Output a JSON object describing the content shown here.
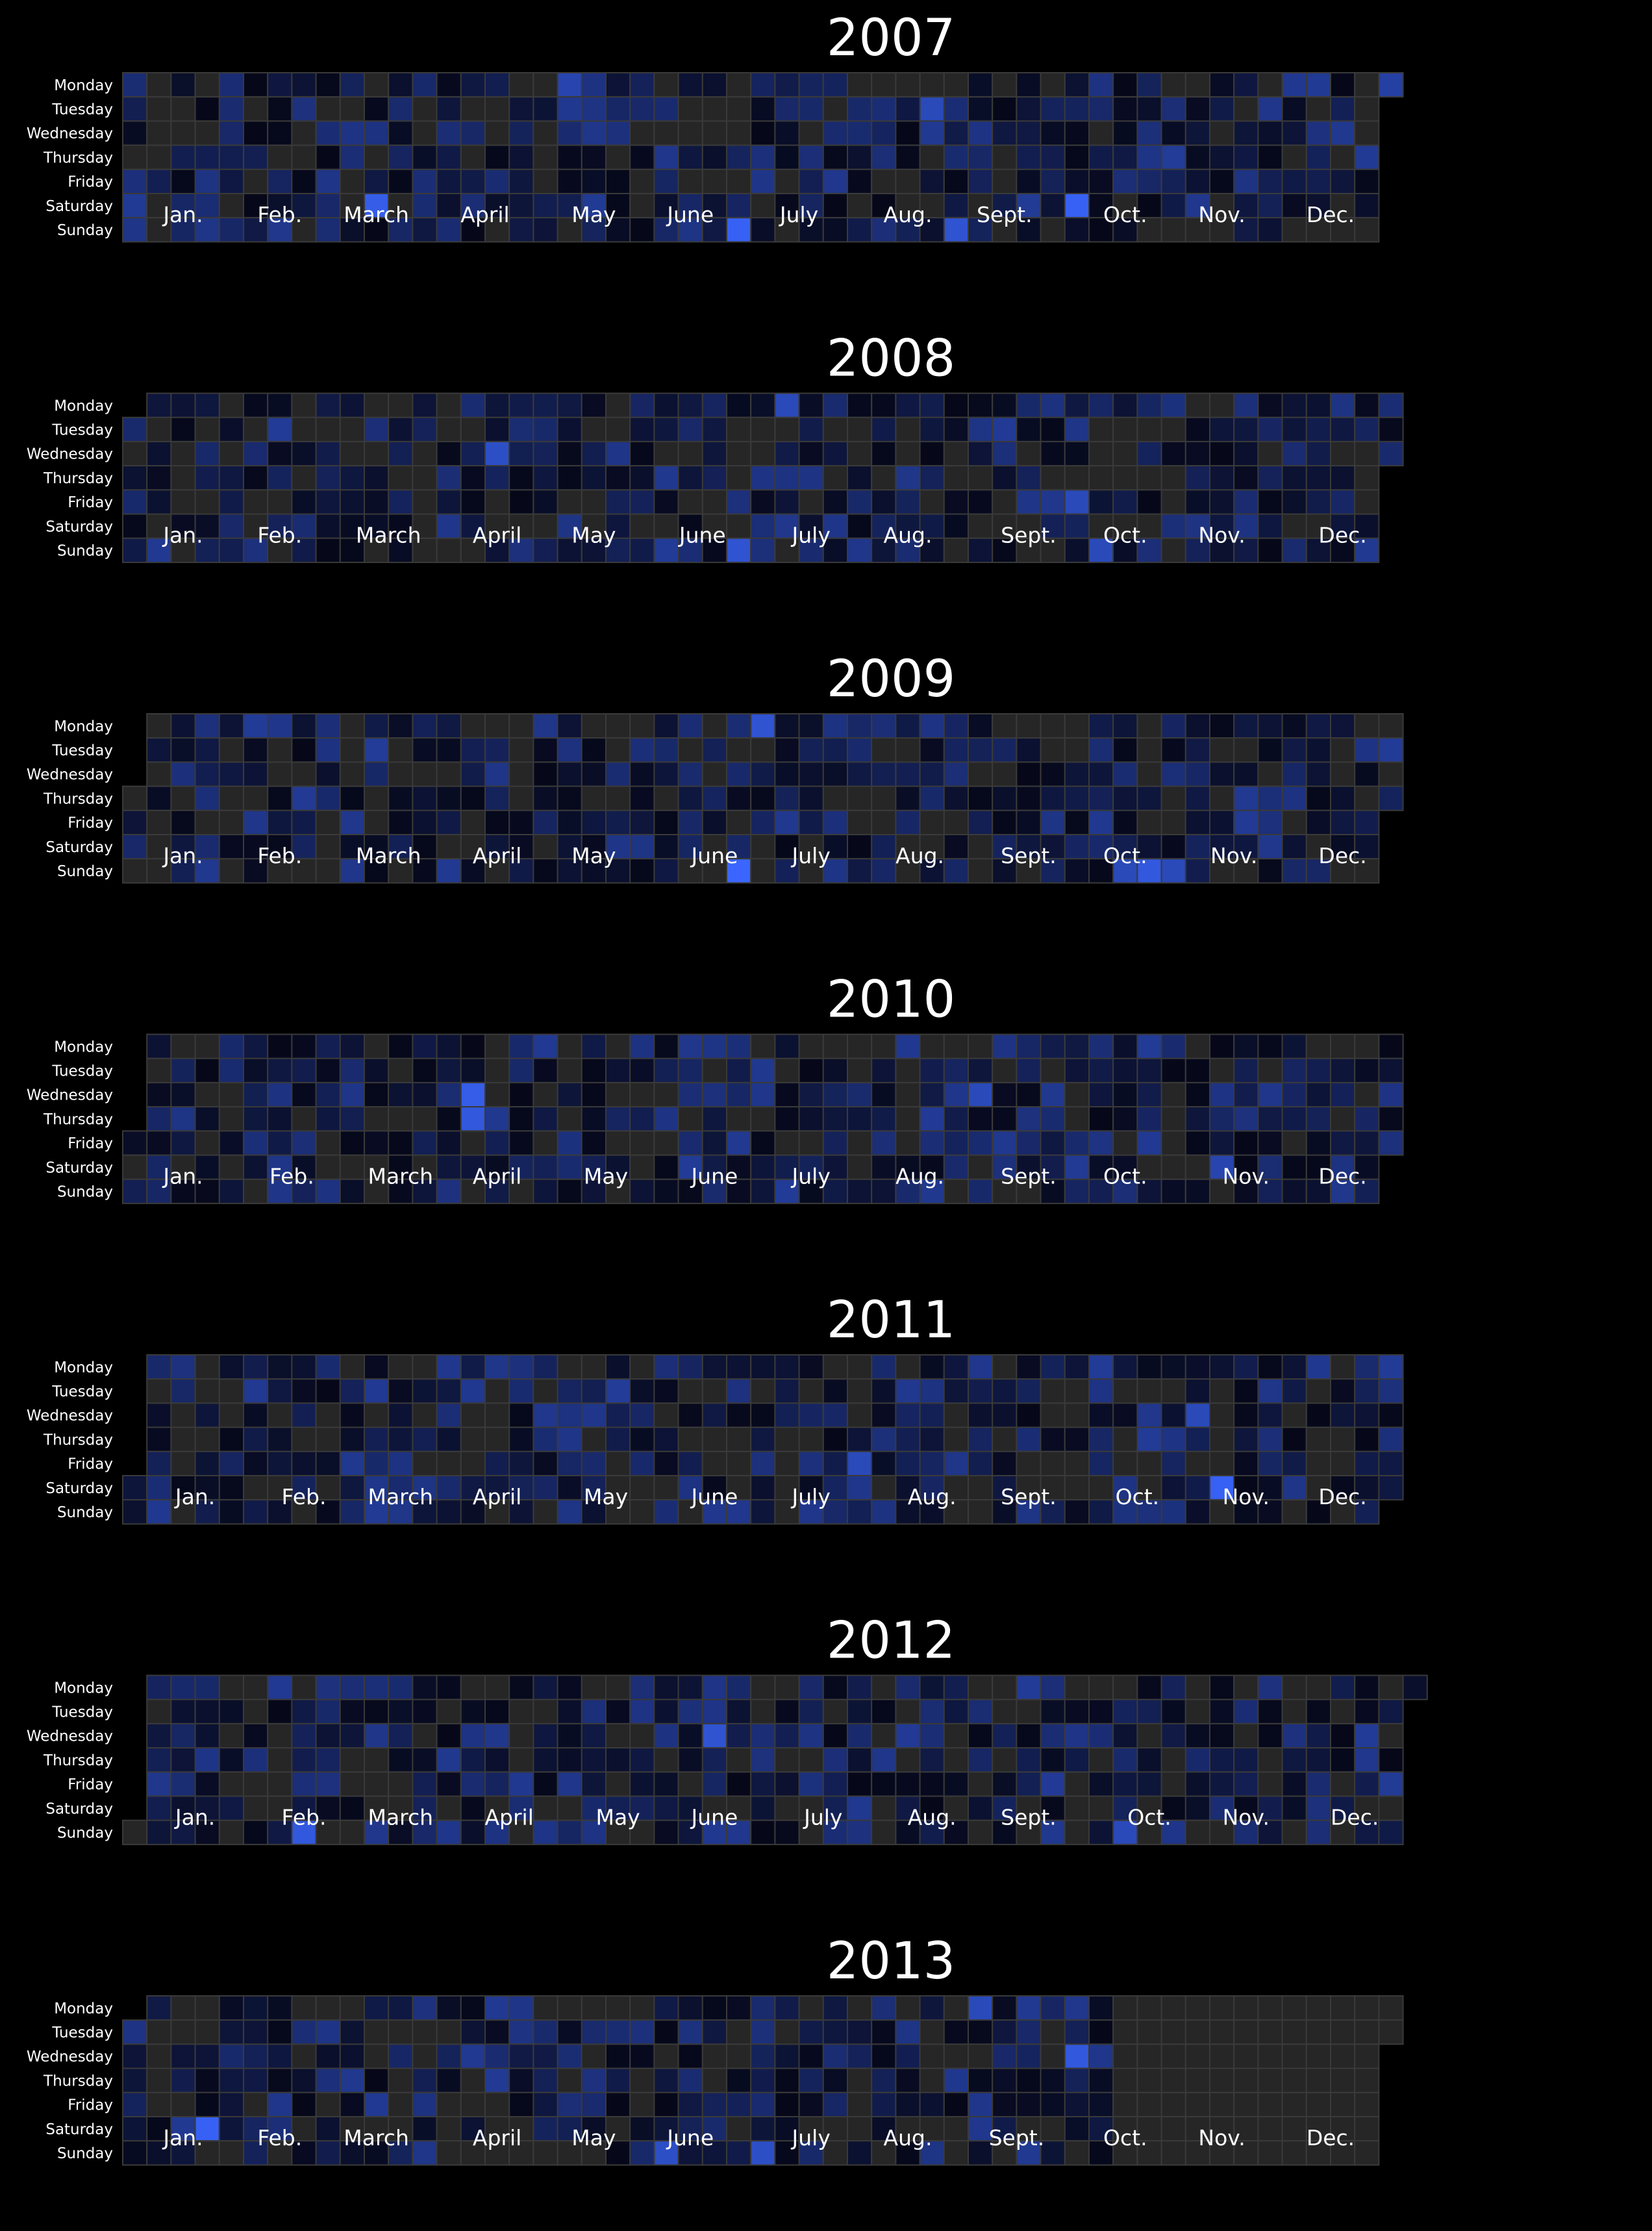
{
  "chart_data": {
    "type": "heatmap",
    "layout": "calendar",
    "years": [
      2007,
      2008,
      2009,
      2010,
      2011,
      2012,
      2013
    ],
    "weekdays": [
      "Monday",
      "Tuesday",
      "Wednesday",
      "Thursday",
      "Friday",
      "Saturday",
      "Sunday"
    ],
    "months": [
      "Jan.",
      "Feb.",
      "March",
      "April",
      "May",
      "June",
      "July",
      "Aug.",
      "Sept.",
      "Oct.",
      "Nov.",
      "Dec."
    ],
    "value_range": [
      0,
      1
    ],
    "colors": {
      "background": "#000000",
      "no_data": "#262626",
      "cell_border": "#3a3a3a",
      "low": "#06081a",
      "high": "#3a66ff",
      "text": "#ffffff"
    },
    "missing_data_from": "2013-10-14",
    "highlights": [
      {
        "date": "2007-03-17",
        "value": 0.9
      },
      {
        "date": "2007-07-01",
        "value": 0.95
      },
      {
        "date": "2007-09-02",
        "value": 0.8
      },
      {
        "date": "2007-10-06",
        "value": 0.95
      },
      {
        "date": "2007-05-07",
        "value": 0.65
      },
      {
        "date": "2007-08-21",
        "value": 0.7
      },
      {
        "date": "2007-12-31",
        "value": 0.6
      },
      {
        "date": "2008-06-29",
        "value": 0.8
      },
      {
        "date": "2008-07-07",
        "value": 0.7
      },
      {
        "date": "2008-04-16",
        "value": 0.75
      },
      {
        "date": "2008-10-03",
        "value": 0.7
      },
      {
        "date": "2008-10-12",
        "value": 0.7
      },
      {
        "date": "2009-06-28",
        "value": 1.0
      },
      {
        "date": "2009-06-29",
        "value": 0.8
      },
      {
        "date": "2009-10-25",
        "value": 0.85
      },
      {
        "date": "2009-11-01",
        "value": 0.7
      },
      {
        "date": "2009-10-18",
        "value": 0.7
      },
      {
        "date": "2010-04-07",
        "value": 0.9
      },
      {
        "date": "2010-04-08",
        "value": 0.85
      },
      {
        "date": "2010-09-01",
        "value": 0.7
      },
      {
        "date": "2010-11-13",
        "value": 0.65
      },
      {
        "date": "2011-11-12",
        "value": 0.95
      },
      {
        "date": "2011-11-02",
        "value": 0.7
      },
      {
        "date": "2011-07-29",
        "value": 0.7
      },
      {
        "date": "2012-02-19",
        "value": 0.85
      },
      {
        "date": "2012-06-13",
        "value": 0.8
      },
      {
        "date": "2012-10-14",
        "value": 0.7
      },
      {
        "date": "2013-01-26",
        "value": 0.95
      },
      {
        "date": "2013-06-09",
        "value": 0.75
      },
      {
        "date": "2013-07-07",
        "value": 0.75
      },
      {
        "date": "2013-10-02",
        "value": 0.85
      },
      {
        "date": "2013-09-02",
        "value": 0.7
      }
    ]
  }
}
